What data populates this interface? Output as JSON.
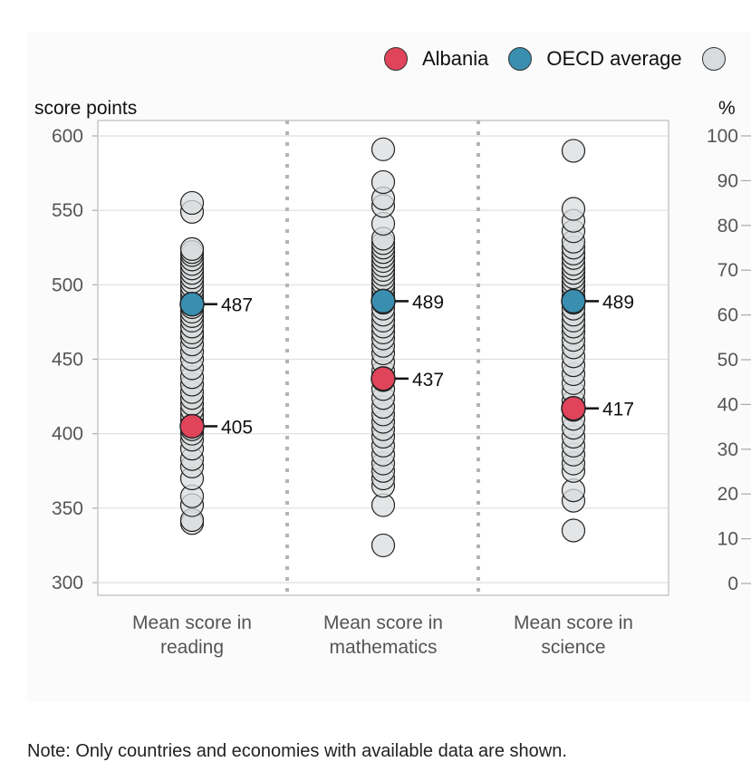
{
  "legend": {
    "items": [
      {
        "label": "Albania",
        "color": "#e0445a"
      },
      {
        "label": "OECD average",
        "color": "#3a8fb0"
      }
    ],
    "partial_item_color": "#d9dcde"
  },
  "footnote": "Note: Only countries and economies with available data are shown.",
  "chart_data": {
    "type": "scatter",
    "left_axis": {
      "label": "score points",
      "range": [
        300,
        600
      ],
      "ticks": [
        300,
        350,
        400,
        450,
        500,
        550,
        600
      ]
    },
    "right_axis": {
      "label": "%",
      "range": [
        0,
        100
      ],
      "ticks": [
        0,
        10,
        20,
        30,
        40,
        50,
        60,
        70,
        80,
        90,
        100
      ]
    },
    "grid": true,
    "categories": [
      "Mean score in reading",
      "Mean score in mathematics",
      "Mean score in science"
    ],
    "category_lines": [
      [
        "Mean score in",
        "reading"
      ],
      [
        "Mean score in",
        "mathematics"
      ],
      [
        "Mean score in",
        "science"
      ]
    ],
    "country_points": [
      [
        340,
        342,
        352,
        358,
        370,
        378,
        383,
        390,
        396,
        400,
        403,
        409,
        412,
        416,
        420,
        424,
        428,
        433,
        438,
        444,
        450,
        455,
        460,
        465,
        468,
        472,
        476,
        479,
        482,
        485,
        490,
        493,
        496,
        499,
        502,
        505,
        508,
        511,
        514,
        517,
        520,
        522,
        524,
        549,
        555
      ],
      [
        325,
        352,
        365,
        370,
        375,
        380,
        386,
        392,
        398,
        403,
        408,
        413,
        418,
        424,
        430,
        436,
        442,
        448,
        454,
        459,
        464,
        468,
        472,
        476,
        480,
        484,
        488,
        492,
        495,
        498,
        501,
        504,
        507,
        510,
        513,
        516,
        519,
        522,
        525,
        528,
        531,
        541,
        553,
        558,
        569,
        591
      ],
      [
        335,
        355,
        362,
        375,
        380,
        386,
        392,
        398,
        404,
        410,
        416,
        422,
        428,
        434,
        440,
        446,
        452,
        458,
        463,
        468,
        472,
        476,
        480,
        484,
        488,
        492,
        496,
        499,
        502,
        505,
        508,
        511,
        514,
        518,
        521,
        525,
        529,
        536,
        543,
        551,
        590
      ]
    ],
    "series": [
      {
        "name": "Albania",
        "values": [
          405,
          437,
          417
        ],
        "labels": [
          "405",
          "437",
          "417"
        ]
      },
      {
        "name": "OECD average",
        "values": [
          487,
          489,
          489
        ],
        "labels": [
          "487",
          "489",
          "489"
        ]
      }
    ]
  }
}
